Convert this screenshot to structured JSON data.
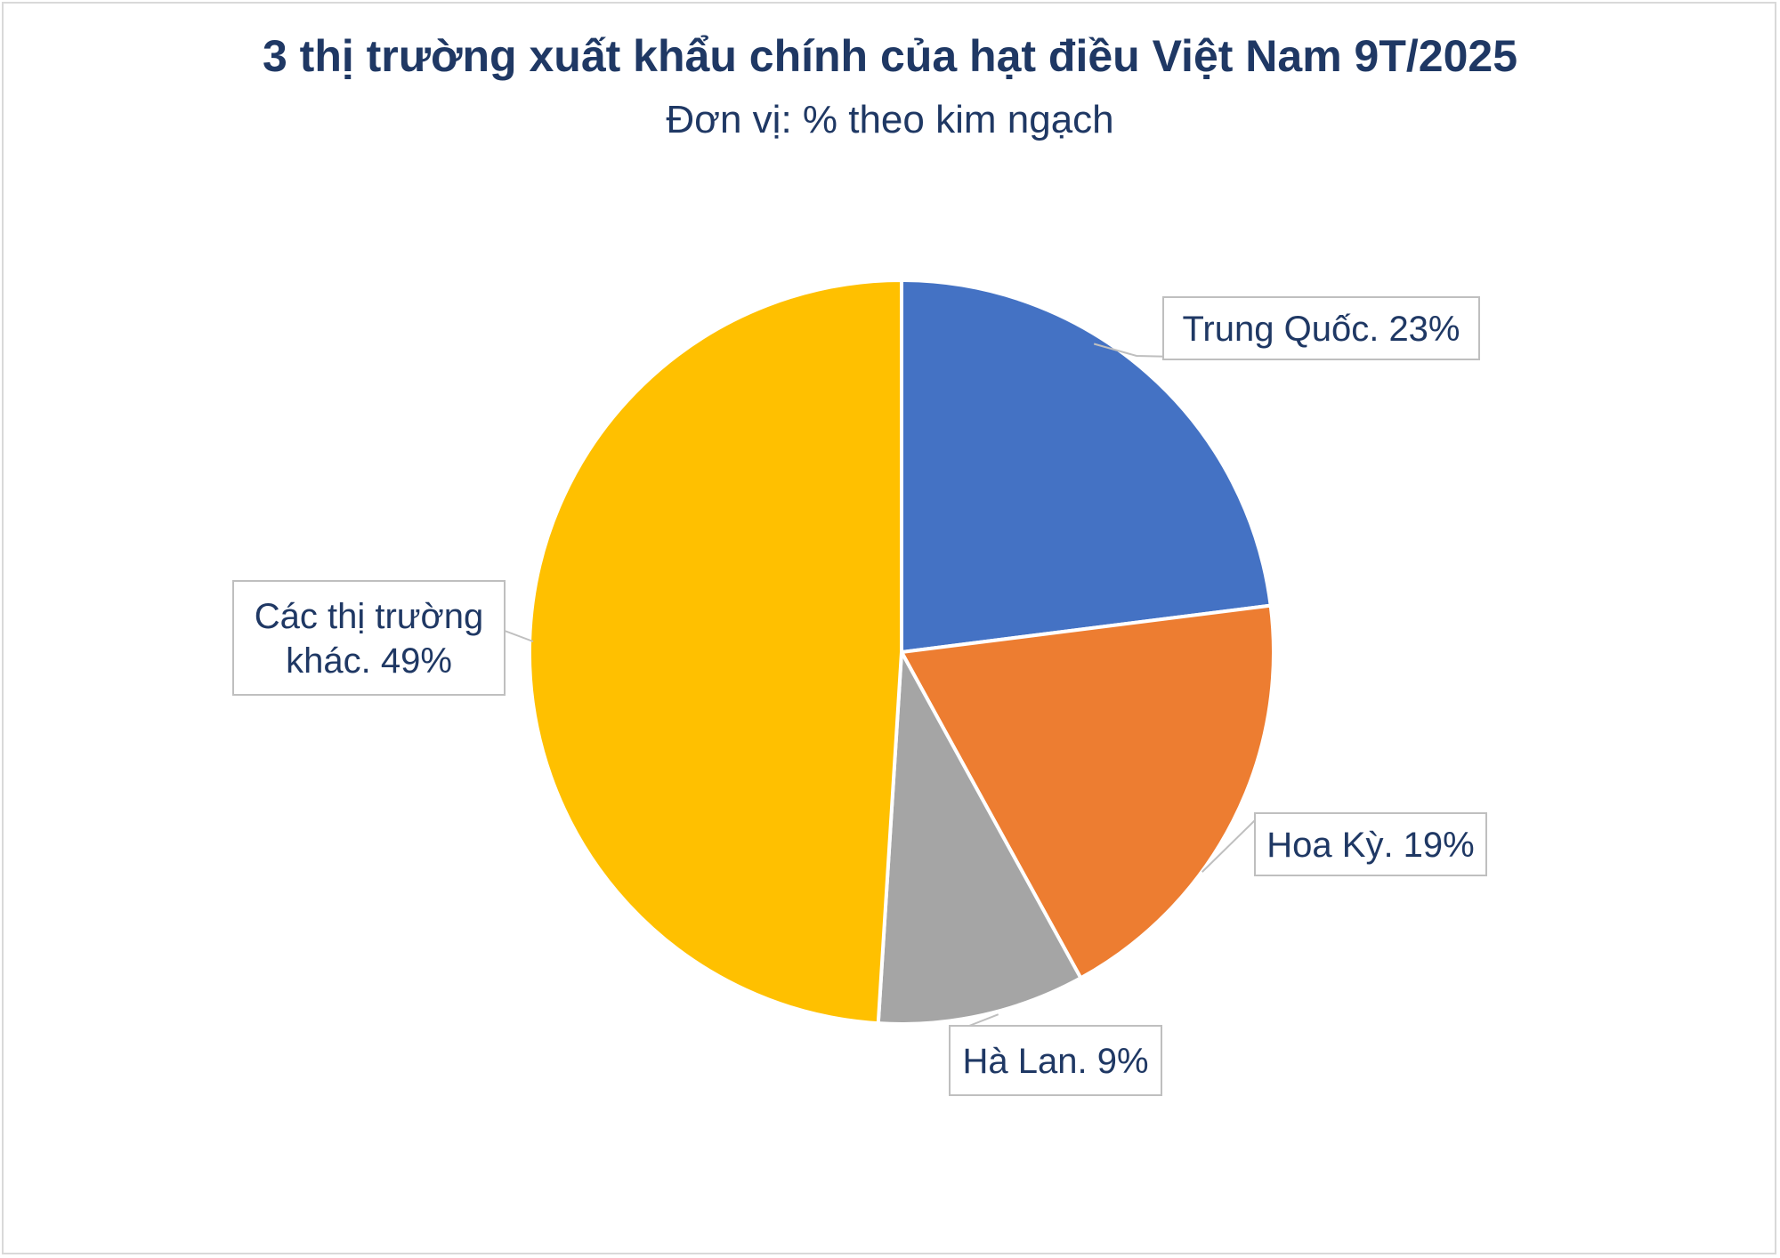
{
  "chart_data": {
    "type": "pie",
    "title": "3 thị trường xuất khẩu chính của hạt điều Việt Nam 9T/2025",
    "subtitle": "Đơn vị: % theo kim ngạch",
    "slices": [
      {
        "name": "Trung Quốc",
        "value": 23,
        "label_lines": [
          "Trung Quốc. 23%"
        ],
        "color": "#4472C4"
      },
      {
        "name": "Hoa Kỳ",
        "value": 19,
        "label_lines": [
          "Hoa Kỳ. 19%"
        ],
        "color": "#ED7D31"
      },
      {
        "name": "Hà Lan",
        "value": 9,
        "label_lines": [
          "Hà Lan. 9%"
        ],
        "color": "#A5A5A5"
      },
      {
        "name": "Các thị trường khác",
        "value": 49,
        "label_lines": [
          "Các thị trường",
          "khác. 49%"
        ],
        "color": "#FFC000"
      }
    ]
  }
}
